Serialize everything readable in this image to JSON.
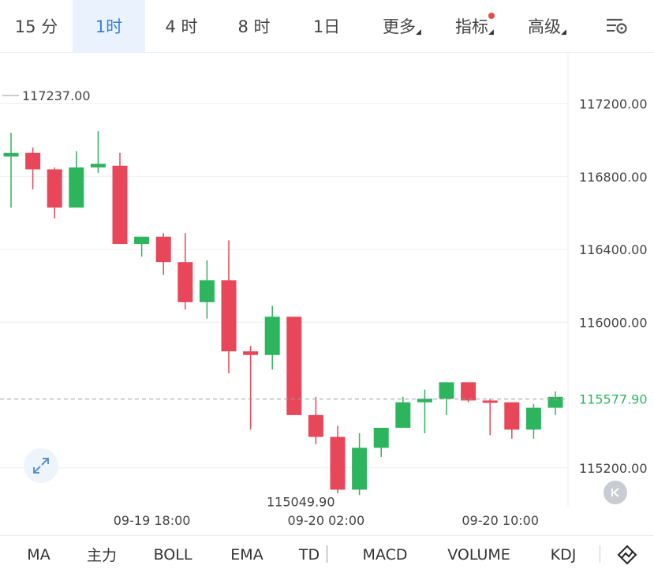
{
  "timeframe_tabs": [
    {
      "label": "15 分"
    },
    {
      "label": "1时",
      "active": true
    },
    {
      "label": "4 时"
    },
    {
      "label": "8 时"
    },
    {
      "label": "1日"
    },
    {
      "label": "更多",
      "dropdown": true
    },
    {
      "label": "指标",
      "dropdown": true,
      "badge_dot": true
    },
    {
      "label": "高级",
      "dropdown": true
    }
  ],
  "settings_icon": "chart-settings-icon",
  "colors": {
    "up": "#2db55d",
    "down": "#e8475a",
    "active_tab_bg": "#eaf3fd",
    "active_tab_text": "#3a7fd6",
    "grid": "#eceff3",
    "price_line": "#9aa0a6"
  },
  "chart_data": {
    "type": "candlestick",
    "y_axis_labels": [
      "117200.00",
      "116800.00",
      "116400.00",
      "116000.00",
      "115200.00"
    ],
    "y_ticks": [
      117200,
      116800,
      116400,
      116000,
      115200
    ],
    "ylim": [
      115000,
      117400
    ],
    "x_axis_labels": [
      {
        "label": "09-19 18:00",
        "index": 6
      },
      {
        "label": "09-20 02:00",
        "index": 14
      },
      {
        "label": "09-20 10:00",
        "index": 22
      }
    ],
    "current_price": 115577.9,
    "current_price_label": "115577.90",
    "max_label": "117237.00",
    "max_value": 117237.0,
    "min_label": "115049.90",
    "min_value": 115049.9,
    "candles": [
      {
        "o": 116910,
        "h": 117040,
        "l": 116630,
        "c": 116930
      },
      {
        "o": 116930,
        "h": 116960,
        "l": 116730,
        "c": 116840
      },
      {
        "o": 116840,
        "h": 116850,
        "l": 116570,
        "c": 116630
      },
      {
        "o": 116630,
        "h": 116940,
        "l": 116630,
        "c": 116850
      },
      {
        "o": 116850,
        "h": 117050,
        "l": 116820,
        "c": 116870
      },
      {
        "o": 116860,
        "h": 116930,
        "l": 116430,
        "c": 116430
      },
      {
        "o": 116430,
        "h": 116470,
        "l": 116360,
        "c": 116470
      },
      {
        "o": 116470,
        "h": 116490,
        "l": 116260,
        "c": 116330
      },
      {
        "o": 116330,
        "h": 116490,
        "l": 116070,
        "c": 116110
      },
      {
        "o": 116110,
        "h": 116340,
        "l": 116020,
        "c": 116230
      },
      {
        "o": 116230,
        "h": 116450,
        "l": 115720,
        "c": 115840
      },
      {
        "o": 115840,
        "h": 115870,
        "l": 115410,
        "c": 115820
      },
      {
        "o": 115820,
        "h": 116090,
        "l": 115740,
        "c": 116030
      },
      {
        "o": 116030,
        "h": 116030,
        "l": 115490,
        "c": 115490
      },
      {
        "o": 115490,
        "h": 115590,
        "l": 115330,
        "c": 115370
      },
      {
        "o": 115370,
        "h": 115430,
        "l": 115060,
        "c": 115080
      },
      {
        "o": 115080,
        "h": 115390,
        "l": 115050,
        "c": 115310
      },
      {
        "o": 115310,
        "h": 115400,
        "l": 115260,
        "c": 115420
      },
      {
        "o": 115420,
        "h": 115590,
        "l": 115420,
        "c": 115560
      },
      {
        "o": 115560,
        "h": 115630,
        "l": 115390,
        "c": 115580
      },
      {
        "o": 115580,
        "h": 115670,
        "l": 115490,
        "c": 115670
      },
      {
        "o": 115670,
        "h": 115670,
        "l": 115560,
        "c": 115570
      },
      {
        "o": 115570,
        "h": 115580,
        "l": 115380,
        "c": 115560
      },
      {
        "o": 115560,
        "h": 115560,
        "l": 115360,
        "c": 115410
      },
      {
        "o": 115410,
        "h": 115550,
        "l": 115360,
        "c": 115530
      },
      {
        "o": 115530,
        "h": 115620,
        "l": 115490,
        "c": 115590
      }
    ]
  },
  "indicator_tabs": [
    "MA",
    "主力",
    "BOLL",
    "EMA",
    "TD",
    "MACD",
    "VOLUME",
    "KDJ"
  ],
  "expand_icon": "expand-arrows-icon",
  "back_icon": "scroll-to-latest-icon",
  "draw_icon": "draw-line-icon"
}
